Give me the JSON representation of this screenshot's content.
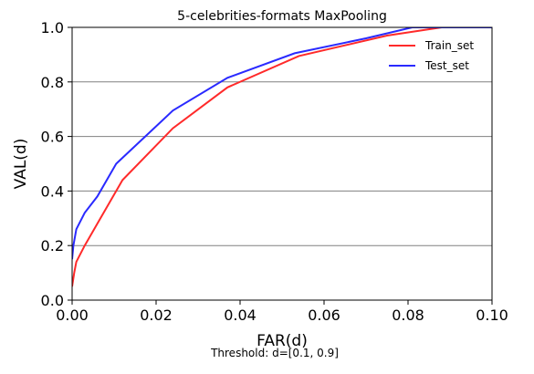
{
  "chart_data": {
    "type": "line",
    "title": "5-celebrities-formats MaxPooling",
    "xlabel": "FAR(d)",
    "ylabel": "VAL(d)",
    "xlim": [
      0.0,
      0.1
    ],
    "ylim": [
      0.0,
      1.0
    ],
    "x_ticks": [
      "0.00",
      "0.02",
      "0.04",
      "0.06",
      "0.08",
      "0.10"
    ],
    "y_ticks": [
      "0.0",
      "0.2",
      "0.4",
      "0.6",
      "0.8",
      "1.0"
    ],
    "grid": "horizontal",
    "legend_position": "top-right",
    "annotation": "Threshold: d=[0.1, 0.9]",
    "series": [
      {
        "name": "Train_set",
        "color": "#ff2a2a",
        "x": [
          0.0,
          0.0005,
          0.001,
          0.003,
          0.006,
          0.012,
          0.024,
          0.037,
          0.054,
          0.075,
          0.088,
          0.1
        ],
        "y": [
          0.05,
          0.1,
          0.14,
          0.2,
          0.28,
          0.44,
          0.63,
          0.78,
          0.895,
          0.97,
          1.0,
          1.0
        ]
      },
      {
        "name": "Test_set",
        "color": "#2a2aff",
        "x": [
          0.0,
          0.0003,
          0.001,
          0.003,
          0.006,
          0.0105,
          0.024,
          0.037,
          0.053,
          0.07,
          0.081,
          0.1
        ],
        "y": [
          0.15,
          0.2,
          0.26,
          0.32,
          0.38,
          0.5,
          0.695,
          0.815,
          0.905,
          0.96,
          1.0,
          1.0
        ]
      }
    ]
  }
}
